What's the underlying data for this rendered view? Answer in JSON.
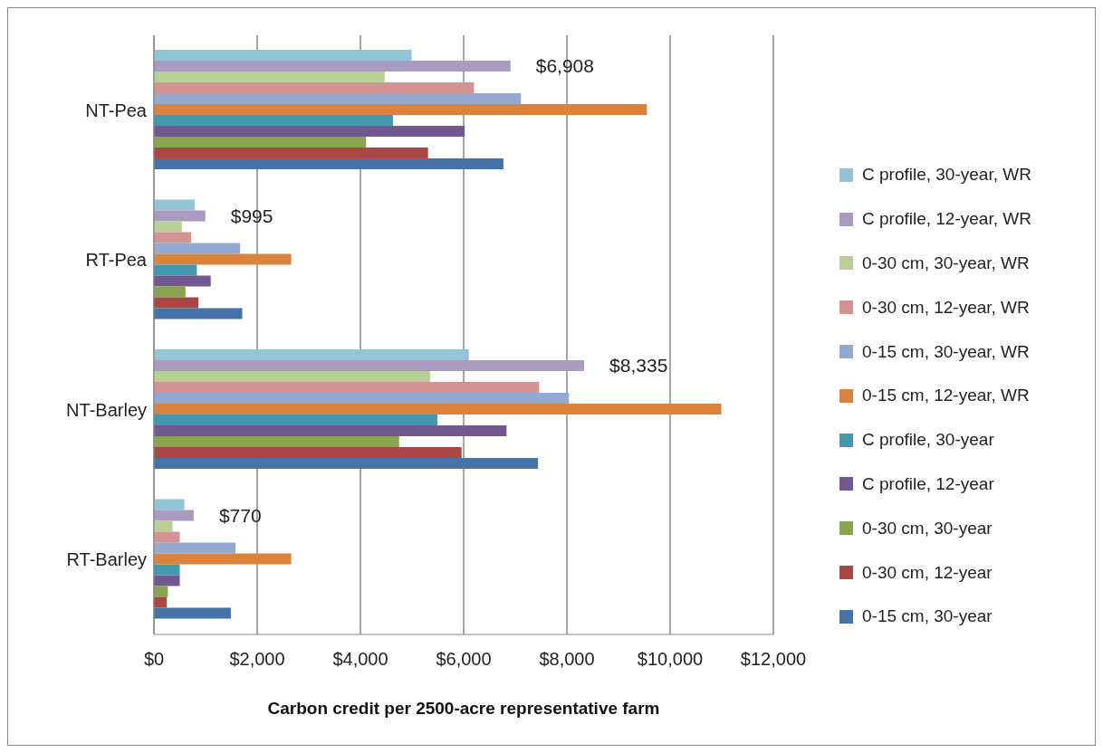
{
  "chart_data": {
    "type": "bar",
    "orientation": "horizontal",
    "xlabel": "Carbon credit per 2500-acre representative farm",
    "categories": [
      "NT-Pea",
      "RT-Pea",
      "NT-Barley",
      "RT-Barley"
    ],
    "series": [
      {
        "name": "C profile, 30-year, WR",
        "color": "#93c4d5",
        "values": [
          4990,
          790,
          6100,
          590
        ]
      },
      {
        "name": "C profile, 12-year, WR",
        "color": "#a99bbf",
        "values": [
          6908,
          995,
          8335,
          770
        ],
        "value_labels": [
          "$6,908",
          "$995",
          "$8,335",
          "$770"
        ]
      },
      {
        "name": "0-30 cm, 30-year, WR",
        "color": "#b8cf96",
        "values": [
          4470,
          540,
          5350,
          360
        ]
      },
      {
        "name": "0-30 cm, 12-year, WR",
        "color": "#d39392",
        "values": [
          6200,
          720,
          7460,
          500
        ]
      },
      {
        "name": "0-15 cm, 30-year, WR",
        "color": "#93a9d1",
        "values": [
          7110,
          1670,
          8040,
          1580
        ]
      },
      {
        "name": "0-15 cm, 12-year, WR",
        "color": "#db823c",
        "values": [
          9550,
          2660,
          10990,
          2660
        ]
      },
      {
        "name": "C profile, 30-year",
        "color": "#4198af",
        "values": [
          4630,
          830,
          5490,
          500
        ]
      },
      {
        "name": "C profile, 12-year",
        "color": "#71588f",
        "values": [
          6020,
          1100,
          6830,
          500
        ]
      },
      {
        "name": "0-30 cm, 30-year",
        "color": "#89a54e",
        "values": [
          4110,
          610,
          4750,
          270
        ]
      },
      {
        "name": "0-30 cm, 12-year",
        "color": "#aa4643",
        "values": [
          5310,
          860,
          5960,
          250
        ]
      },
      {
        "name": "0-15 cm, 30-year",
        "color": "#4572a7",
        "values": [
          6770,
          1710,
          7440,
          1490
        ]
      }
    ],
    "xlim": [
      0,
      12000
    ],
    "xticks": [
      {
        "value": 0,
        "label": "$0"
      },
      {
        "value": 2000,
        "label": "$2,000"
      },
      {
        "value": 4000,
        "label": "$4,000"
      },
      {
        "value": 6000,
        "label": "$6,000"
      },
      {
        "value": 8000,
        "label": "$8,000"
      },
      {
        "value": 10000,
        "label": "$10,000"
      },
      {
        "value": 12000,
        "label": "$12,000"
      }
    ],
    "grid": "x",
    "legend": "right"
  }
}
